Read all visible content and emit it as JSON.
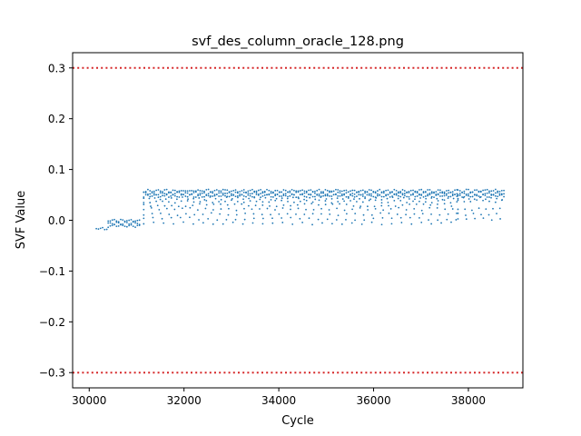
{
  "chart_data": {
    "type": "scatter",
    "title": "svf_des_column_oracle_128.png",
    "xlabel": "Cycle",
    "ylabel": "SVF Value",
    "xlim": [
      29650,
      39150
    ],
    "ylim": [
      -0.33,
      0.33
    ],
    "xticks": [
      30000,
      32000,
      34000,
      36000,
      38000
    ],
    "yticks": [
      -0.3,
      -0.2,
      -0.1,
      0.0,
      0.1,
      0.2,
      0.3
    ],
    "xtick_labels": [
      "30000",
      "32000",
      "34000",
      "36000",
      "38000"
    ],
    "ytick_labels": [
      "−0.3",
      "−0.2",
      "−0.1",
      "0.0",
      "0.1",
      "0.2",
      "0.3"
    ],
    "threshold_lines": [
      {
        "y": 0.3,
        "color": "#d62728",
        "style": "dotted"
      },
      {
        "y": -0.3,
        "color": "#d62728",
        "style": "dotted"
      }
    ],
    "grid": false,
    "legend": "none",
    "series_color": "#1f77b4",
    "series": [
      {
        "segments": [
          {
            "x_start": 30150,
            "x_end": 30400,
            "y_bands": [
              -0.016
            ]
          },
          {
            "x_start": 30400,
            "x_end": 31100,
            "y_bands": [
              -0.001,
              -0.006,
              -0.011
            ]
          },
          {
            "x_start": 31150,
            "x_end": 37780,
            "y_bands": [
              0.058,
              0.053,
              0.048,
              0.043,
              0.037,
              0.03,
              0.022,
              0.012,
              0.003,
              -0.006
            ]
          },
          {
            "x_start": 37780,
            "x_end": 38750,
            "y_bands": [
              0.058,
              0.053,
              0.048,
              0.043,
              0.038,
              0.022,
              0.012,
              0.003
            ]
          }
        ]
      }
    ]
  }
}
